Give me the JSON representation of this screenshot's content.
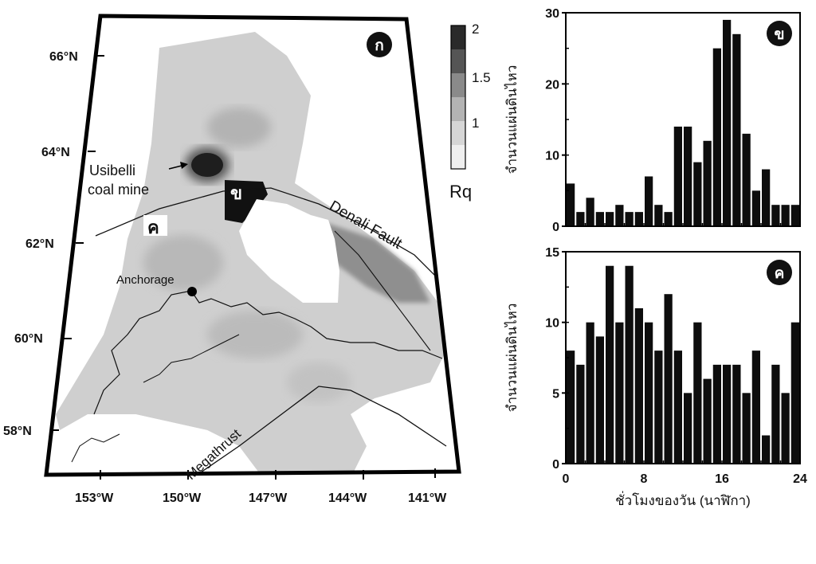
{
  "map": {
    "badge": "ก",
    "lat_labels": [
      "66°N",
      "64°N",
      "62°N",
      "60°N",
      "58°N"
    ],
    "lon_labels": [
      "153°W",
      "150°W",
      "147°W",
      "144°W",
      "141°W"
    ],
    "places": {
      "mine_line1": "Usibelli",
      "mine_line2": "coal mine",
      "anchorage": "Anchorage",
      "denali": "Denali Fault",
      "megathrust": "Megathrust",
      "region_b": "ข",
      "region_c": "ค"
    },
    "legend": {
      "title": "Rq",
      "ticks": [
        "2",
        "1.5",
        "1"
      ],
      "colors": [
        "#2a2a2a",
        "#555555",
        "#8a8a8a",
        "#b3b3b3",
        "#d6d6d6",
        "#efefef"
      ]
    }
  },
  "chart_data": [
    {
      "type": "bar",
      "badge": "ข",
      "x": [
        0,
        1,
        2,
        3,
        4,
        5,
        6,
        7,
        8,
        9,
        10,
        11,
        12,
        13,
        14,
        15,
        16,
        17,
        18,
        19,
        20,
        21,
        22,
        23
      ],
      "values": [
        6,
        2,
        4,
        2,
        2,
        3,
        2,
        2,
        7,
        3,
        2,
        14,
        14,
        9,
        12,
        25,
        29,
        27,
        13,
        5,
        8,
        3,
        3,
        3
      ],
      "ylabel": "จำนวนแผ่นดินไหว",
      "ylim": [
        0,
        30
      ],
      "yticks": [
        0,
        10,
        20,
        30
      ],
      "xlim": [
        0,
        24
      ]
    },
    {
      "type": "bar",
      "badge": "ค",
      "x": [
        0,
        1,
        2,
        3,
        4,
        5,
        6,
        7,
        8,
        9,
        10,
        11,
        12,
        13,
        14,
        15,
        16,
        17,
        18,
        19,
        20,
        21,
        22,
        23
      ],
      "values": [
        8,
        7,
        10,
        9,
        14,
        10,
        14,
        11,
        10,
        8,
        12,
        8,
        5,
        10,
        6,
        7,
        7,
        7,
        5,
        8,
        2,
        7,
        5,
        10
      ],
      "ylabel": "จำนวนแผ่นดินไหว",
      "ylim": [
        0,
        15
      ],
      "yticks": [
        0,
        5,
        10,
        15
      ],
      "xlim": [
        0,
        24
      ],
      "xticks": [
        0,
        8,
        16,
        24
      ],
      "xlabel": "ชั่วโมงของวัน (นาฬิกา)"
    }
  ]
}
